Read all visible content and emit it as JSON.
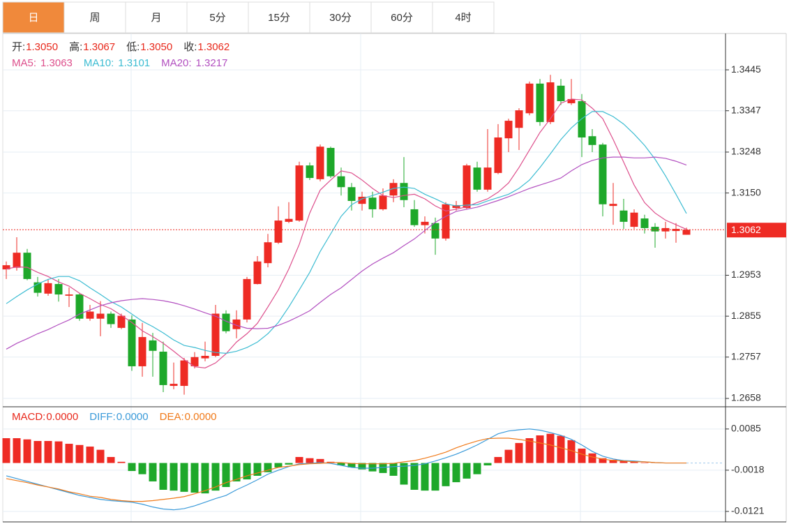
{
  "tabs": [
    "日",
    "周",
    "月",
    "5分",
    "15分",
    "30分",
    "60分",
    "4时"
  ],
  "selected_tab": 0,
  "chart_data": [
    {
      "type": "candlestick",
      "quote": [
        {
          "name": "开:",
          "value": "1.3050"
        },
        {
          "name": "高:",
          "value": "1.3067"
        },
        {
          "name": "低:",
          "value": "1.3050"
        },
        {
          "name": "收:",
          "value": "1.3062"
        }
      ],
      "quote_color": "#e8291c",
      "up_color": "#ee2b24",
      "down_color": "#1ea82a",
      "open": [
        1.2967,
        1.2971,
        1.3007,
        1.2936,
        1.2909,
        1.2932,
        1.2904,
        1.2907,
        1.2849,
        1.2849,
        1.2861,
        1.2827,
        1.2847,
        1.2735,
        1.2797,
        1.277,
        1.2688,
        1.2688,
        1.2735,
        1.2754,
        1.276,
        1.2861,
        1.2824,
        1.2847,
        1.2932,
        1.2982,
        1.3031,
        1.3081,
        1.3084,
        1.3216,
        1.3183,
        1.3258,
        1.319,
        1.3164,
        1.3124,
        1.3139,
        1.3111,
        1.3144,
        1.3174,
        1.3111,
        1.3073,
        1.3078,
        1.3041,
        1.3114,
        1.3114,
        1.3211,
        1.3158,
        1.3198,
        1.3281,
        1.3306,
        1.3341,
        1.3412,
        1.332,
        1.3407,
        1.3365,
        1.337,
        1.3286,
        1.3266,
        1.3119,
        1.3108,
        1.3069,
        1.3089,
        1.3069,
        1.3058,
        1.3059,
        1.305
      ],
      "high": [
        1.2986,
        1.3044,
        1.3016,
        1.2949,
        1.2944,
        1.2944,
        1.2924,
        1.2911,
        1.2882,
        1.2891,
        1.2866,
        1.2861,
        1.2857,
        1.2839,
        1.2815,
        1.2794,
        1.2744,
        1.2755,
        1.2769,
        1.2794,
        1.2882,
        1.2869,
        1.2869,
        1.2949,
        1.2999,
        1.3052,
        1.3118,
        1.3128,
        1.3225,
        1.3223,
        1.3266,
        1.3261,
        1.3211,
        1.3174,
        1.3153,
        1.3153,
        1.3161,
        1.3183,
        1.3236,
        1.3133,
        1.3094,
        1.3091,
        1.3128,
        1.3131,
        1.322,
        1.3225,
        1.3303,
        1.3315,
        1.3328,
        1.3353,
        1.3417,
        1.3423,
        1.3433,
        1.3423,
        1.3423,
        1.3387,
        1.3303,
        1.327,
        1.3174,
        1.3136,
        1.3111,
        1.3098,
        1.3078,
        1.3081,
        1.3078,
        1.3067
      ],
      "low": [
        1.2944,
        1.2964,
        1.2941,
        1.2902,
        1.2904,
        1.289,
        1.2877,
        1.2844,
        1.2844,
        1.2807,
        1.2827,
        1.2824,
        1.2724,
        1.271,
        1.271,
        1.2673,
        1.268,
        1.2667,
        1.273,
        1.2747,
        1.2757,
        1.2814,
        1.2802,
        1.284,
        1.2931,
        1.2972,
        1.3028,
        1.3078,
        1.3081,
        1.3181,
        1.3178,
        1.3186,
        1.3144,
        1.3108,
        1.3108,
        1.3091,
        1.3108,
        1.3128,
        1.3116,
        1.3069,
        1.3053,
        1.3002,
        1.3036,
        1.3108,
        1.3111,
        1.3153,
        1.3153,
        1.3195,
        1.3248,
        1.3253,
        1.3336,
        1.3311,
        1.3315,
        1.3361,
        1.3361,
        1.3236,
        1.3248,
        1.3094,
        1.3074,
        1.3064,
        1.3064,
        1.3053,
        1.3019,
        1.3041,
        1.3031,
        1.305
      ],
      "close": [
        1.2977,
        1.3007,
        1.2944,
        1.2911,
        1.2934,
        1.2907,
        1.2907,
        1.2849,
        1.2866,
        1.2861,
        1.2836,
        1.2856,
        1.2735,
        1.2805,
        1.2772,
        1.269,
        1.2693,
        1.2749,
        1.2757,
        1.276,
        1.2861,
        1.2819,
        1.2847,
        1.2944,
        1.2986,
        1.3032,
        1.3084,
        1.3088,
        1.3216,
        1.3186,
        1.3261,
        1.319,
        1.3164,
        1.3131,
        1.3141,
        1.3111,
        1.3144,
        1.3174,
        1.3133,
        1.3073,
        1.3081,
        1.3041,
        1.3123,
        1.3121,
        1.3216,
        1.3158,
        1.3211,
        1.3283,
        1.3323,
        1.3348,
        1.3412,
        1.332,
        1.3415,
        1.337,
        1.3375,
        1.3283,
        1.3265,
        1.3123,
        1.3124,
        1.3081,
        1.3103,
        1.3066,
        1.3058,
        1.3066,
        1.3064,
        1.3062
      ],
      "series": [
        {
          "name": "MA5:",
          "color": "#dd4f8c",
          "legend_value": "1.3063",
          "values": [
            1.2968,
            1.2973,
            1.2972,
            1.296,
            1.295,
            1.2937,
            1.2927,
            1.291,
            1.2897,
            1.2883,
            1.2873,
            1.2857,
            1.284,
            1.282,
            1.2806,
            1.279,
            1.2771,
            1.2751,
            1.2734,
            1.2731,
            1.2743,
            1.2765,
            1.2793,
            1.2813,
            1.2838,
            1.2877,
            1.2918,
            1.2968,
            1.3027,
            1.3102,
            1.3157,
            1.3181,
            1.3203,
            1.3198,
            1.3181,
            1.3161,
            1.3144,
            1.3139,
            1.3144,
            1.3147,
            1.3136,
            1.3119,
            1.3107,
            1.3111,
            1.3117,
            1.3127,
            1.3136,
            1.3152,
            1.3174,
            1.3211,
            1.3253,
            1.3295,
            1.3328,
            1.3365,
            1.3375,
            1.3373,
            1.3353,
            1.3328,
            1.3278,
            1.3224,
            1.3169,
            1.3127,
            1.3102,
            1.3085,
            1.3074,
            1.3063
          ]
        },
        {
          "name": "MA10:",
          "color": "#3cbcd2",
          "legend_value": "1.3101",
          "values": [
            1.2885,
            1.2902,
            1.2918,
            1.2932,
            1.2943,
            1.295,
            1.295,
            1.294,
            1.2923,
            1.2907,
            1.289,
            1.2877,
            1.286,
            1.2843,
            1.283,
            1.2815,
            1.2798,
            1.2785,
            1.278,
            1.2773,
            1.2768,
            1.2766,
            1.2771,
            1.278,
            1.2793,
            1.2813,
            1.284,
            1.2877,
            1.2918,
            1.296,
            1.301,
            1.3052,
            1.3094,
            1.3122,
            1.3136,
            1.3144,
            1.3152,
            1.3161,
            1.3164,
            1.3161,
            1.3147,
            1.3136,
            1.3124,
            1.3119,
            1.3121,
            1.3122,
            1.3131,
            1.3139,
            1.3147,
            1.3161,
            1.3181,
            1.3211,
            1.3244,
            1.3278,
            1.3306,
            1.3328,
            1.3345,
            1.3345,
            1.3333,
            1.3315,
            1.3291,
            1.3264,
            1.3231,
            1.3191,
            1.3147,
            1.3101
          ]
        },
        {
          "name": "MA20:",
          "color": "#b24fc0",
          "legend_value": "1.3217",
          "values": [
            1.2776,
            1.279,
            1.2801,
            1.2813,
            1.2823,
            1.2835,
            1.2846,
            1.286,
            1.287,
            1.288,
            1.2887,
            1.2892,
            1.2895,
            1.2897,
            1.2895,
            1.2892,
            1.2887,
            1.288,
            1.2872,
            1.2863,
            1.2855,
            1.2843,
            1.2833,
            1.2826,
            1.2825,
            1.2826,
            1.2833,
            1.2843,
            1.2855,
            1.2868,
            1.2888,
            1.2907,
            1.2923,
            1.2943,
            1.2963,
            1.298,
            1.2994,
            1.3007,
            1.3024,
            1.304,
            1.306,
            1.308,
            1.3094,
            1.3106,
            1.3111,
            1.3116,
            1.3124,
            1.3132,
            1.3141,
            1.3151,
            1.3161,
            1.3169,
            1.3177,
            1.3186,
            1.3203,
            1.3218,
            1.3228,
            1.3234,
            1.3236,
            1.3236,
            1.3234,
            1.3234,
            1.3236,
            1.3233,
            1.3226,
            1.3217
          ]
        }
      ],
      "ylim": [
        1.2638,
        1.3532
      ],
      "yticks": [
        1.3445,
        1.3347,
        1.3248,
        {
          "value": 1.315,
          "label": "1.3150"
        },
        1.2953,
        1.2855,
        1.2757,
        1.2658
      ],
      "last_price": 1.3062,
      "last_price_color": "#ee2b24",
      "grid": true
    },
    {
      "type": "macd",
      "up_color": "#ee2b24",
      "down_color": "#1ea82a",
      "series": [
        {
          "name": "MACD:",
          "color": "#e8291c",
          "legend_value": "0.0000",
          "values": [
            0.0062,
            0.0062,
            0.0059,
            0.0055,
            0.0055,
            0.0054,
            0.0048,
            0.0045,
            0.0041,
            0.0033,
            0.0015,
            0.0003,
            -0.002,
            -0.0028,
            -0.0046,
            -0.0067,
            -0.0069,
            -0.0072,
            -0.0074,
            -0.0076,
            -0.0069,
            -0.006,
            -0.0046,
            -0.0041,
            -0.0032,
            -0.0023,
            -0.0011,
            -0.0004,
            0.0015,
            0.0012,
            0.001,
            0.0003,
            -0.0006,
            -0.0011,
            -0.0016,
            -0.0021,
            -0.0025,
            -0.0032,
            -0.0054,
            -0.0067,
            -0.0069,
            -0.0069,
            -0.0058,
            -0.0048,
            -0.0039,
            -0.0028,
            -0.0006,
            0.0015,
            0.0033,
            0.005,
            0.0062,
            0.0069,
            0.0073,
            0.0068,
            0.0057,
            0.0036,
            0.0024,
            0.0012,
            0.0008,
            0.0006,
            0.0005,
            0.0001,
            0.0001,
            0,
            0,
            0
          ]
        },
        {
          "name": "DIFF:",
          "color": "#3a9ad9",
          "legend_value": "0.0000",
          "values": [
            -0.0032,
            -0.0039,
            -0.0046,
            -0.0053,
            -0.006,
            -0.0067,
            -0.0074,
            -0.0081,
            -0.0086,
            -0.0091,
            -0.0094,
            -0.0096,
            -0.0098,
            -0.0103,
            -0.011,
            -0.0115,
            -0.0117,
            -0.0114,
            -0.0107,
            -0.0098,
            -0.0089,
            -0.0081,
            -0.0067,
            -0.0055,
            -0.0042,
            -0.0028,
            -0.0018,
            -0.0009,
            -0.0002,
            -0.0001,
            0.0001,
            -0.0001,
            -0.0006,
            -0.0011,
            -0.0013,
            -0.0013,
            -0.0011,
            -0.0009,
            -0.0008,
            -0.0006,
            -0.0002,
            0.0005,
            0.0013,
            0.0022,
            0.0033,
            0.0045,
            0.0059,
            0.0073,
            0.008,
            0.0083,
            0.0085,
            0.0082,
            0.0076,
            0.0069,
            0.0059,
            0.0045,
            0.0029,
            0.0017,
            0.001,
            0.0006,
            0.0005,
            0.0003,
            0.0001,
            0,
            0,
            0
          ]
        },
        {
          "name": "DEA:",
          "color": "#f07a1a",
          "legend_value": "0.0000",
          "values": [
            -0.0039,
            -0.0044,
            -0.0049,
            -0.0055,
            -0.006,
            -0.0065,
            -0.0072,
            -0.0077,
            -0.0083,
            -0.0086,
            -0.0091,
            -0.0094,
            -0.0096,
            -0.0096,
            -0.0094,
            -0.0091,
            -0.0088,
            -0.0084,
            -0.0077,
            -0.0069,
            -0.006,
            -0.0049,
            -0.0041,
            -0.0032,
            -0.0025,
            -0.0018,
            -0.0011,
            -0.0008,
            -0.0004,
            -0.0002,
            -0.0001,
            0.0001,
            0.0001,
            -0.0001,
            -0.0002,
            -0.0002,
            -0.0002,
            -0.0001,
            0.0003,
            0.0006,
            0.0012,
            0.0019,
            0.0027,
            0.0038,
            0.0047,
            0.0055,
            0.0061,
            0.0062,
            0.0062,
            0.0059,
            0.0055,
            0.005,
            0.0045,
            0.0038,
            0.0031,
            0.0022,
            0.0015,
            0.001,
            0.0006,
            0.0005,
            0.0003,
            0.0003,
            0.0001,
            0,
            0,
            0
          ]
        }
      ],
      "ylim": [
        -0.0142,
        0.0137
      ],
      "yticks": [
        0.0085,
        -0.0018,
        -0.0121
      ],
      "grid": true
    }
  ]
}
